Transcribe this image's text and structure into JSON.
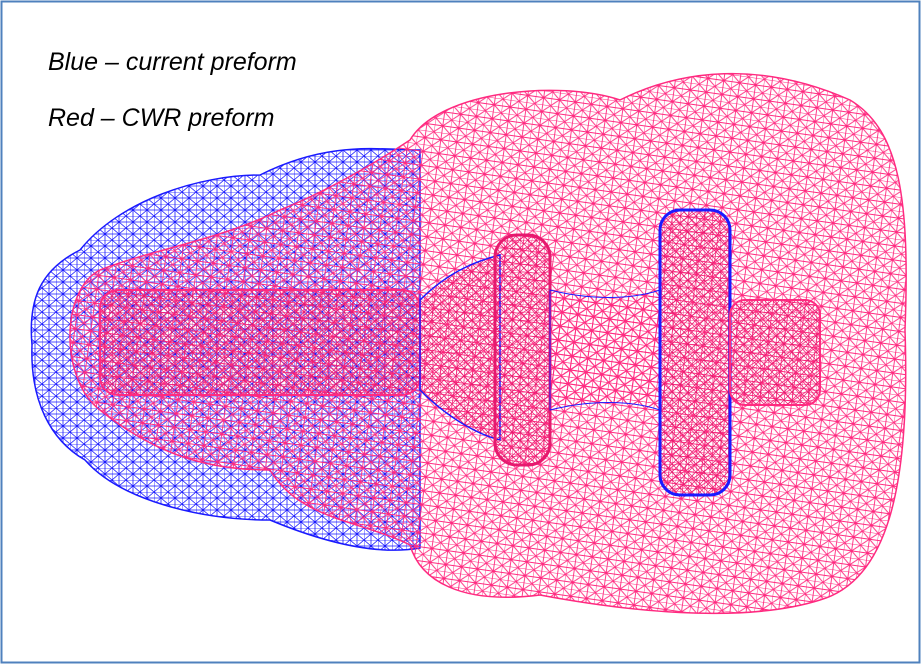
{
  "legend": [
    "Blue – current preform",
    "Red – CWR preform"
  ]
}
